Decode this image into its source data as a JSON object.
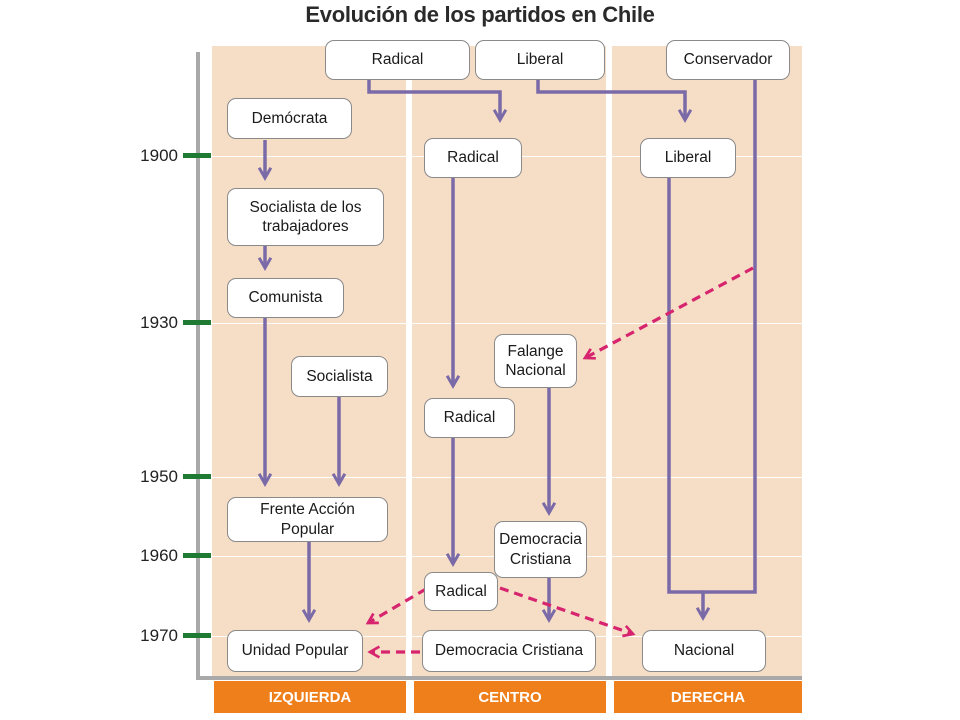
{
  "title": "Evolución de los partidos en Chile",
  "timeline": {
    "years": [
      {
        "label": "1900"
      },
      {
        "label": "1930"
      },
      {
        "label": "1950"
      },
      {
        "label": "1960"
      },
      {
        "label": "1970"
      }
    ]
  },
  "columns": [
    {
      "label": "IZQUIERDA"
    },
    {
      "label": "CENTRO"
    },
    {
      "label": "DERECHA"
    }
  ],
  "parties": {
    "radical_top": "Radical",
    "liberal_top": "Liberal",
    "conservador": "Conservador",
    "democrata": "Demócrata",
    "socialista_trab": "Socialista  de los trabajadores",
    "comunista": "Comunista",
    "socialista": "Socialista",
    "frente_accion": "Frente Acción Popular",
    "unidad_popular": "Unidad Popular",
    "radical_1900": "Radical",
    "liberal_1900": "Liberal",
    "falange": "Falange Nacional",
    "radical_mid": "Radical",
    "democracia_cristiana_1": "Democracia Cristiana",
    "radical_late": "Radical",
    "democracia_cristiana_2": "Democracia Cristiana",
    "nacional": "Nacional"
  },
  "colors": {
    "flow": "#7b6aa8",
    "influence": "#d6246e",
    "tick": "#1f7a34",
    "column_bg": "#f6dec6",
    "label_bg": "#ee7f1b"
  }
}
